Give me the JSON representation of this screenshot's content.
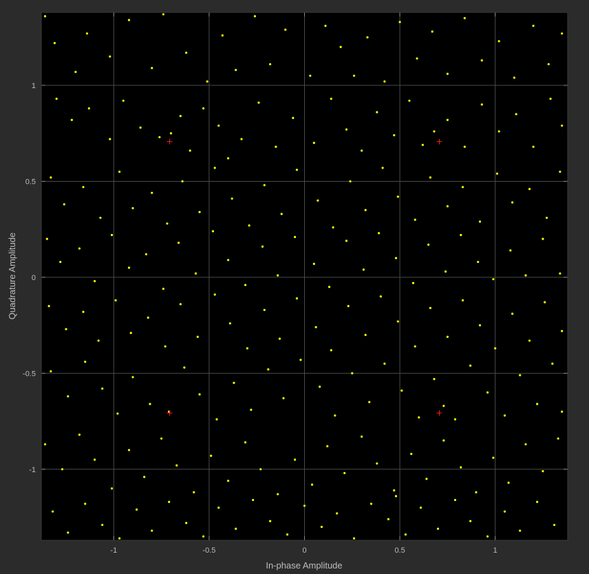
{
  "chart_data": {
    "type": "scatter",
    "title": "",
    "xlabel": "In-phase Amplitude",
    "ylabel": "Quadrature Amplitude",
    "xlim": [
      -1.38,
      1.38
    ],
    "ylim": [
      -1.37,
      1.38
    ],
    "grid": true,
    "x_ticks": [
      {
        "value": -1,
        "label": "-1"
      },
      {
        "value": -0.5,
        "label": "-0.5"
      },
      {
        "value": 0,
        "label": "0"
      },
      {
        "value": 0.5,
        "label": "0.5"
      },
      {
        "value": 1,
        "label": "1"
      }
    ],
    "y_ticks": [
      {
        "value": -1,
        "label": "-1"
      },
      {
        "value": -0.5,
        "label": "-0.5"
      },
      {
        "value": 0,
        "label": "0"
      },
      {
        "value": 0.5,
        "label": "0.5"
      },
      {
        "value": 1,
        "label": "1"
      }
    ],
    "colors": {
      "background": "#000000",
      "figure": "#2b2b2b",
      "grid": "#4a4a4a",
      "received": "#ffff00",
      "reference": "#ff2020",
      "text": "#bdbdbd"
    },
    "series": [
      {
        "marker": "dot",
        "points": [
          [
            -1.36,
            1.36
          ],
          [
            -1.31,
            1.22
          ],
          [
            -1.2,
            1.07
          ],
          [
            -1.14,
            1.27
          ],
          [
            -1.02,
            1.15
          ],
          [
            -0.92,
            1.34
          ],
          [
            -0.8,
            1.09
          ],
          [
            -0.74,
            1.37
          ],
          [
            -0.62,
            1.17
          ],
          [
            -0.51,
            1.02
          ],
          [
            -0.43,
            1.26
          ],
          [
            -0.36,
            1.08
          ],
          [
            -0.26,
            1.36
          ],
          [
            -0.18,
            1.11
          ],
          [
            -0.1,
            1.29
          ],
          [
            0.03,
            1.05
          ],
          [
            0.11,
            1.31
          ],
          [
            0.19,
            1.2
          ],
          [
            0.26,
            1.05
          ],
          [
            0.33,
            1.25
          ],
          [
            0.42,
            1.02
          ],
          [
            0.5,
            1.33
          ],
          [
            0.59,
            1.14
          ],
          [
            0.67,
            1.28
          ],
          [
            0.75,
            1.06
          ],
          [
            0.84,
            1.35
          ],
          [
            0.93,
            1.13
          ],
          [
            1.02,
            1.23
          ],
          [
            1.1,
            1.04
          ],
          [
            1.2,
            1.31
          ],
          [
            1.28,
            1.11
          ],
          [
            1.35,
            1.27
          ],
          [
            -1.3,
            0.93
          ],
          [
            -1.22,
            0.82
          ],
          [
            -1.13,
            0.88
          ],
          [
            -1.02,
            0.72
          ],
          [
            -0.95,
            0.92
          ],
          [
            -0.86,
            0.78
          ],
          [
            -0.76,
            0.73
          ],
          [
            -0.7,
            0.75
          ],
          [
            -0.65,
            0.84
          ],
          [
            -0.6,
            0.66
          ],
          [
            -0.53,
            0.88
          ],
          [
            -0.45,
            0.79
          ],
          [
            -0.4,
            0.62
          ],
          [
            -0.33,
            0.72
          ],
          [
            -0.24,
            0.91
          ],
          [
            -0.15,
            0.68
          ],
          [
            -0.06,
            0.83
          ],
          [
            0.05,
            0.7
          ],
          [
            0.14,
            0.93
          ],
          [
            0.22,
            0.77
          ],
          [
            0.3,
            0.66
          ],
          [
            0.38,
            0.86
          ],
          [
            0.47,
            0.74
          ],
          [
            0.55,
            0.92
          ],
          [
            0.62,
            0.69
          ],
          [
            0.68,
            0.76
          ],
          [
            0.75,
            0.82
          ],
          [
            0.84,
            0.68
          ],
          [
            0.93,
            0.9
          ],
          [
            1.02,
            0.76
          ],
          [
            1.11,
            0.85
          ],
          [
            1.2,
            0.68
          ],
          [
            1.29,
            0.93
          ],
          [
            1.35,
            0.79
          ],
          [
            -1.33,
            0.52
          ],
          [
            -1.26,
            0.38
          ],
          [
            -1.16,
            0.47
          ],
          [
            -1.07,
            0.31
          ],
          [
            -0.97,
            0.55
          ],
          [
            -0.9,
            0.36
          ],
          [
            -0.8,
            0.44
          ],
          [
            -0.72,
            0.28
          ],
          [
            -0.64,
            0.5
          ],
          [
            -0.55,
            0.34
          ],
          [
            -0.47,
            0.57
          ],
          [
            -0.38,
            0.41
          ],
          [
            -0.29,
            0.27
          ],
          [
            -0.21,
            0.48
          ],
          [
            -0.12,
            0.33
          ],
          [
            -0.04,
            0.56
          ],
          [
            0.07,
            0.4
          ],
          [
            0.15,
            0.26
          ],
          [
            0.24,
            0.5
          ],
          [
            0.32,
            0.35
          ],
          [
            0.41,
            0.57
          ],
          [
            0.49,
            0.42
          ],
          [
            0.58,
            0.3
          ],
          [
            0.66,
            0.52
          ],
          [
            0.75,
            0.37
          ],
          [
            0.83,
            0.47
          ],
          [
            0.92,
            0.29
          ],
          [
            1.01,
            0.54
          ],
          [
            1.09,
            0.39
          ],
          [
            1.18,
            0.46
          ],
          [
            1.27,
            0.31
          ],
          [
            1.34,
            0.55
          ],
          [
            -1.35,
            0.2
          ],
          [
            -1.28,
            0.08
          ],
          [
            -1.18,
            0.15
          ],
          [
            -1.1,
            -0.02
          ],
          [
            -1.01,
            0.22
          ],
          [
            -0.92,
            0.05
          ],
          [
            -0.83,
            0.12
          ],
          [
            -0.74,
            -0.06
          ],
          [
            -0.66,
            0.18
          ],
          [
            -0.57,
            0.02
          ],
          [
            -0.48,
            0.24
          ],
          [
            -0.4,
            0.09
          ],
          [
            -0.31,
            -0.04
          ],
          [
            -0.22,
            0.16
          ],
          [
            -0.14,
            0.01
          ],
          [
            -0.05,
            0.21
          ],
          [
            0.05,
            0.07
          ],
          [
            0.13,
            -0.05
          ],
          [
            0.22,
            0.19
          ],
          [
            0.31,
            0.04
          ],
          [
            0.39,
            0.23
          ],
          [
            0.48,
            0.1
          ],
          [
            0.57,
            -0.03
          ],
          [
            0.65,
            0.17
          ],
          [
            0.74,
            0.03
          ],
          [
            0.82,
            0.22
          ],
          [
            0.91,
            0.08
          ],
          [
            0.99,
            -0.01
          ],
          [
            1.08,
            0.14
          ],
          [
            1.16,
            0.01
          ],
          [
            1.25,
            0.2
          ],
          [
            1.34,
            0.02
          ],
          [
            -1.34,
            -0.15
          ],
          [
            -1.25,
            -0.27
          ],
          [
            -1.16,
            -0.18
          ],
          [
            -1.08,
            -0.33
          ],
          [
            -0.99,
            -0.12
          ],
          [
            -0.91,
            -0.29
          ],
          [
            -0.82,
            -0.21
          ],
          [
            -0.73,
            -0.36
          ],
          [
            -0.65,
            -0.14
          ],
          [
            -0.56,
            -0.31
          ],
          [
            -0.47,
            -0.09
          ],
          [
            -0.39,
            -0.24
          ],
          [
            -0.3,
            -0.37
          ],
          [
            -0.21,
            -0.17
          ],
          [
            -0.13,
            -0.32
          ],
          [
            -0.04,
            -0.11
          ],
          [
            0.06,
            -0.26
          ],
          [
            0.14,
            -0.38
          ],
          [
            0.23,
            -0.15
          ],
          [
            0.32,
            -0.3
          ],
          [
            0.4,
            -0.1
          ],
          [
            0.49,
            -0.23
          ],
          [
            0.58,
            -0.36
          ],
          [
            0.66,
            -0.16
          ],
          [
            0.75,
            -0.31
          ],
          [
            0.83,
            -0.12
          ],
          [
            0.92,
            -0.25
          ],
          [
            1.0,
            -0.37
          ],
          [
            1.09,
            -0.19
          ],
          [
            1.18,
            -0.33
          ],
          [
            1.26,
            -0.13
          ],
          [
            1.35,
            -0.28
          ],
          [
            -1.33,
            -0.49
          ],
          [
            -1.24,
            -0.62
          ],
          [
            -1.15,
            -0.44
          ],
          [
            -1.06,
            -0.58
          ],
          [
            -0.98,
            -0.71
          ],
          [
            -0.9,
            -0.52
          ],
          [
            -0.81,
            -0.66
          ],
          [
            -0.71,
            -0.7
          ],
          [
            -0.63,
            -0.47
          ],
          [
            -0.55,
            -0.61
          ],
          [
            -0.46,
            -0.74
          ],
          [
            -0.37,
            -0.55
          ],
          [
            -0.28,
            -0.69
          ],
          [
            -0.19,
            -0.48
          ],
          [
            -0.11,
            -0.63
          ],
          [
            -0.02,
            -0.43
          ],
          [
            0.08,
            -0.57
          ],
          [
            0.16,
            -0.72
          ],
          [
            0.25,
            -0.5
          ],
          [
            0.34,
            -0.65
          ],
          [
            0.42,
            -0.45
          ],
          [
            0.51,
            -0.59
          ],
          [
            0.6,
            -0.73
          ],
          [
            0.68,
            -0.53
          ],
          [
            0.73,
            -0.67
          ],
          [
            0.79,
            -0.74
          ],
          [
            0.87,
            -0.46
          ],
          [
            0.96,
            -0.6
          ],
          [
            1.05,
            -0.72
          ],
          [
            1.13,
            -0.51
          ],
          [
            1.22,
            -0.66
          ],
          [
            1.3,
            -0.45
          ],
          [
            1.35,
            -0.7
          ],
          [
            -1.36,
            -0.87
          ],
          [
            -1.27,
            -1.0
          ],
          [
            -1.18,
            -0.82
          ],
          [
            -1.1,
            -0.95
          ],
          [
            -1.01,
            -1.1
          ],
          [
            -0.92,
            -0.9
          ],
          [
            -0.84,
            -1.04
          ],
          [
            -0.75,
            -0.84
          ],
          [
            -0.67,
            -0.98
          ],
          [
            -0.58,
            -1.12
          ],
          [
            -0.49,
            -0.93
          ],
          [
            -0.4,
            -1.06
          ],
          [
            -0.31,
            -0.86
          ],
          [
            -0.23,
            -1.0
          ],
          [
            -0.14,
            -1.13
          ],
          [
            -0.05,
            -0.95
          ],
          [
            0.04,
            -1.08
          ],
          [
            0.12,
            -0.88
          ],
          [
            0.21,
            -1.02
          ],
          [
            0.3,
            -0.83
          ],
          [
            0.38,
            -0.97
          ],
          [
            0.47,
            -1.11
          ],
          [
            0.56,
            -0.92
          ],
          [
            0.64,
            -1.05
          ],
          [
            0.73,
            -0.85
          ],
          [
            0.82,
            -0.99
          ],
          [
            0.9,
            -1.12
          ],
          [
            0.99,
            -0.94
          ],
          [
            1.07,
            -1.07
          ],
          [
            1.16,
            -0.87
          ],
          [
            1.25,
            -1.01
          ],
          [
            1.33,
            -0.84
          ],
          [
            -1.32,
            -1.22
          ],
          [
            -1.24,
            -1.33
          ],
          [
            -1.15,
            -1.18
          ],
          [
            -1.06,
            -1.29
          ],
          [
            -0.97,
            -1.36
          ],
          [
            -0.88,
            -1.21
          ],
          [
            -0.8,
            -1.32
          ],
          [
            -0.71,
            -1.17
          ],
          [
            -0.62,
            -1.28
          ],
          [
            -0.53,
            -1.35
          ],
          [
            -0.45,
            -1.2
          ],
          [
            -0.36,
            -1.31
          ],
          [
            -0.27,
            -1.16
          ],
          [
            -0.18,
            -1.27
          ],
          [
            -0.09,
            -1.34
          ],
          [
            0.0,
            -1.19
          ],
          [
            0.09,
            -1.3
          ],
          [
            0.17,
            -1.23
          ],
          [
            0.26,
            -1.36
          ],
          [
            0.35,
            -1.18
          ],
          [
            0.44,
            -1.26
          ],
          [
            0.48,
            -1.14
          ],
          [
            0.53,
            -1.34
          ],
          [
            0.61,
            -1.2
          ],
          [
            0.7,
            -1.31
          ],
          [
            0.79,
            -1.16
          ],
          [
            0.87,
            -1.27
          ],
          [
            0.96,
            -1.35
          ],
          [
            1.05,
            -1.22
          ],
          [
            1.13,
            -1.32
          ],
          [
            1.22,
            -1.17
          ],
          [
            1.31,
            -1.29
          ]
        ]
      },
      {
        "marker": "plus",
        "points": [
          [
            -0.707,
            0.707
          ],
          [
            0.707,
            0.707
          ],
          [
            -0.707,
            -0.707
          ],
          [
            0.707,
            -0.707
          ]
        ]
      }
    ]
  }
}
